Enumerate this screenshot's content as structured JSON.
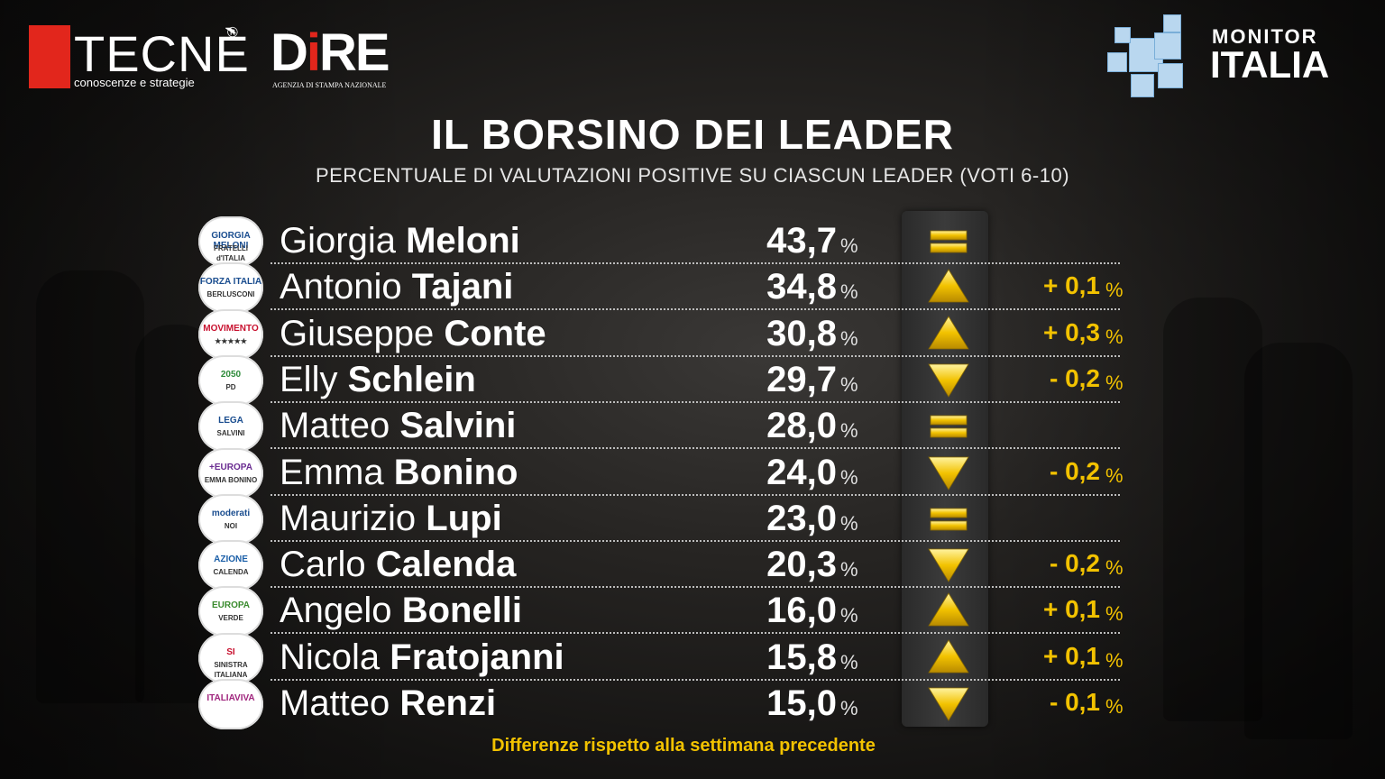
{
  "logos": {
    "tecne": {
      "word": "TECNÈ",
      "reg": "®",
      "tagline": "conoscenze e strategie"
    },
    "dire": {
      "word_d": "D",
      "word_i": "i",
      "word_re": "RE",
      "tagline": "AGENZIA DI STAMPA NAZIONALE"
    },
    "monitor": {
      "top": "MONITOR",
      "bottom": "ITALIA"
    }
  },
  "colors": {
    "accent": "#f2c200",
    "brand_red": "#e2261c"
  },
  "chart_data": {
    "type": "table",
    "title": "IL BORSINO DEI LEADER",
    "subtitle": "PERCENTUALE DI VALUTAZIONI POSITIVE SU CIASCUN LEADER (VOTI 6-10)",
    "footnote": "Differenze rispetto alla settimana precedente",
    "unit": "%",
    "rows": [
      {
        "first": "Giorgia",
        "last": "Meloni",
        "value": 43.7,
        "value_label": "43,7",
        "trend": "equal",
        "delta": null,
        "delta_label": "",
        "logo_text": "GIORGIA MELONI",
        "logo_sub": "FRATELLI d'ITALIA"
      },
      {
        "first": "Antonio",
        "last": "Tajani",
        "value": 34.8,
        "value_label": "34,8",
        "trend": "up",
        "delta": 0.1,
        "delta_label": "+ 0,1",
        "logo_text": "FORZA ITALIA",
        "logo_sub": "BERLUSCONI"
      },
      {
        "first": "Giuseppe",
        "last": "Conte",
        "value": 30.8,
        "value_label": "30,8",
        "trend": "up",
        "delta": 0.3,
        "delta_label": "+ 0,3",
        "logo_text": "MOVIMENTO",
        "logo_sub": "★★★★★"
      },
      {
        "first": "Elly",
        "last": "Schlein",
        "value": 29.7,
        "value_label": "29,7",
        "trend": "down",
        "delta": -0.2,
        "delta_label": "- 0,2",
        "logo_text": "2050",
        "logo_sub": "PD"
      },
      {
        "first": "Matteo",
        "last": "Salvini",
        "value": 28.0,
        "value_label": "28,0",
        "trend": "equal",
        "delta": null,
        "delta_label": "",
        "logo_text": "LEGA",
        "logo_sub": "SALVINI"
      },
      {
        "first": "Emma",
        "last": "Bonino",
        "value": 24.0,
        "value_label": "24,0",
        "trend": "down",
        "delta": -0.2,
        "delta_label": "- 0,2",
        "logo_text": "+EUROPA",
        "logo_sub": "EMMA BONINO"
      },
      {
        "first": "Maurizio",
        "last": "Lupi",
        "value": 23.0,
        "value_label": "23,0",
        "trend": "equal",
        "delta": null,
        "delta_label": "",
        "logo_text": "moderati",
        "logo_sub": "NOI"
      },
      {
        "first": "Carlo",
        "last": "Calenda",
        "value": 20.3,
        "value_label": "20,3",
        "trend": "down",
        "delta": -0.2,
        "delta_label": "- 0,2",
        "logo_text": "AZIONE",
        "logo_sub": "CALENDA"
      },
      {
        "first": "Angelo",
        "last": "Bonelli",
        "value": 16.0,
        "value_label": "16,0",
        "trend": "up",
        "delta": 0.1,
        "delta_label": "+ 0,1",
        "logo_text": "EUROPA",
        "logo_sub": "VERDE"
      },
      {
        "first": "Nicola",
        "last": "Fratojanni",
        "value": 15.8,
        "value_label": "15,8",
        "trend": "up",
        "delta": 0.1,
        "delta_label": "+ 0,1",
        "logo_text": "SI",
        "logo_sub": "SINISTRA ITALIANA"
      },
      {
        "first": "Matteo",
        "last": "Renzi",
        "value": 15.0,
        "value_label": "15,0",
        "trend": "down",
        "delta": -0.1,
        "delta_label": "- 0,1",
        "logo_text": "ITALIAVIVA",
        "logo_sub": ""
      }
    ]
  }
}
